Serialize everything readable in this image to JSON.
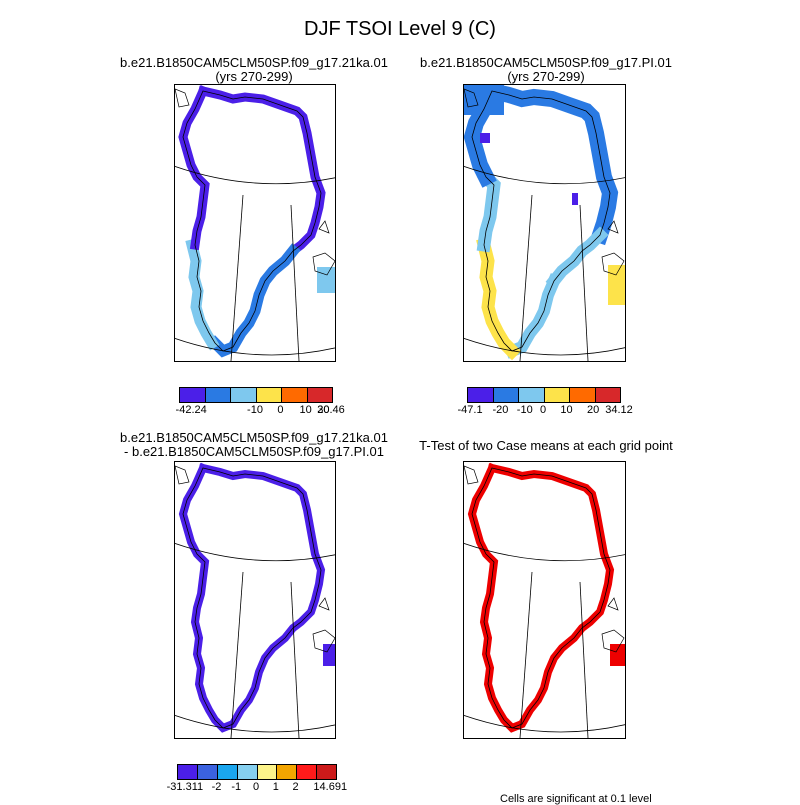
{
  "figure": {
    "title": "DJF TSOI Level 9 (C)"
  },
  "panels": [
    {
      "title_line1": "b.e21.B1850CAM5CLM50SP.f09_g17.21ka.01",
      "title_line2": "(yrs 270-299)",
      "colorbar": {
        "colors": [
          "#4b1fe8",
          "#2a7ae3",
          "#7ec8ee",
          "#fde34a",
          "#ff6a00",
          "#d7282a"
        ],
        "labels": [
          "-42.24",
          "-10",
          "0",
          "10",
          "20",
          "30.46"
        ]
      }
    },
    {
      "title_line1": "b.e21.B1850CAM5CLM50SP.f09_g17.PI.01",
      "title_line2": "(yrs 270-299)",
      "colorbar": {
        "colors": [
          "#4b1fe8",
          "#2a7ae3",
          "#7ec8ee",
          "#fde34a",
          "#ff6a00",
          "#d7282a"
        ],
        "labels": [
          "-47.1",
          "-20",
          "-10",
          "0",
          "10",
          "20",
          "34.12"
        ]
      }
    },
    {
      "title_line1": "b.e21.B1850CAM5CLM50SP.f09_g17.21ka.01",
      "title_line2": "- b.e21.B1850CAM5CLM50SP.f09_g17.PI.01",
      "colorbar": {
        "colors": [
          "#4b1fe8",
          "#3b62e0",
          "#1aa6ef",
          "#86d0f0",
          "#fdf48a",
          "#f3a500",
          "#ff1a1a",
          "#cc1a1a"
        ],
        "labels": [
          "-31.311",
          "-2",
          "-1",
          "0",
          "1",
          "2",
          "14.691"
        ]
      }
    },
    {
      "title_line1": "T-Test of two Case means at each grid point",
      "title_line2": "",
      "note": "Cells are significant at 0.1 level"
    }
  ],
  "fill_colors": {
    "p1_main": "#4b1fe8",
    "p1_south": "#2a7ae3",
    "p1_light": "#7ec8ee",
    "p2_main": "#2a7ae3",
    "p2_light": "#7ec8ee",
    "p2_yellow": "#fde34a",
    "p2_dark": "#4b1fe8",
    "p3_main": "#4b1fe8",
    "p4_main": "#ee0000"
  }
}
